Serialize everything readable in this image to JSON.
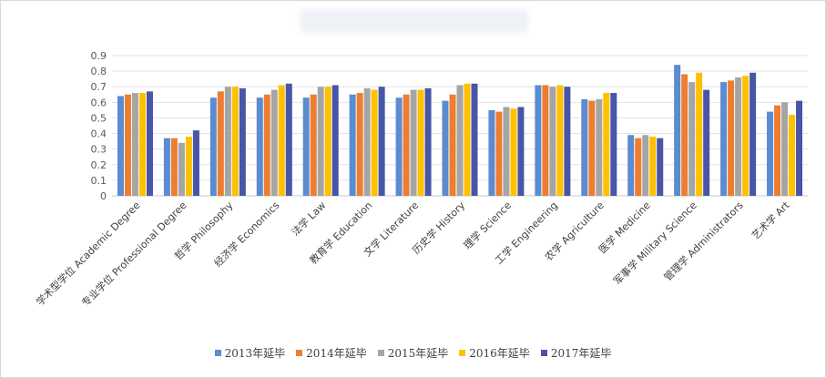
{
  "chart_data": {
    "type": "bar",
    "title": "",
    "xlabel": "",
    "ylabel": "",
    "ylim": [
      0,
      0.9
    ],
    "yticks": [
      0,
      0.1,
      0.2,
      0.3,
      0.4,
      0.5,
      0.6,
      0.7,
      0.8,
      0.9
    ],
    "ytick_labels": [
      "0",
      "0.1",
      "0.2",
      "0.3",
      "0.4",
      "0.5",
      "0.6",
      "0.7",
      "0.8",
      "0.9"
    ],
    "grid": true,
    "legend_position": "bottom",
    "categories": [
      "学术型学位 Academic Degree",
      "专业学位 Professional Degree",
      "哲学 Philosophy",
      "经济学 Economics",
      "法学 Law",
      "教育学 Education",
      "文学 Literature",
      "历史学 History",
      "理学 Science",
      "工学 Engineering",
      "农学 Agriculture",
      "医学 Medicine",
      "军事学 Military Science",
      "管理学 Administrators",
      "艺术学 Art"
    ],
    "series": [
      {
        "name": "2013年延毕",
        "color": "#5b8bd0",
        "values": [
          0.64,
          0.37,
          0.63,
          0.63,
          0.63,
          0.65,
          0.63,
          0.61,
          0.55,
          0.71,
          0.62,
          0.39,
          0.84,
          0.73,
          0.54
        ]
      },
      {
        "name": "2014年延毕",
        "color": "#ed7d31",
        "values": [
          0.65,
          0.37,
          0.67,
          0.65,
          0.65,
          0.66,
          0.65,
          0.65,
          0.54,
          0.71,
          0.61,
          0.37,
          0.78,
          0.74,
          0.58
        ]
      },
      {
        "name": "2015年延毕",
        "color": "#a5a5a5",
        "values": [
          0.66,
          0.34,
          0.7,
          0.68,
          0.7,
          0.69,
          0.68,
          0.71,
          0.57,
          0.7,
          0.62,
          0.39,
          0.73,
          0.76,
          0.6
        ]
      },
      {
        "name": "2016年延毕",
        "color": "#ffc000",
        "values": [
          0.66,
          0.38,
          0.7,
          0.71,
          0.7,
          0.68,
          0.68,
          0.72,
          0.56,
          0.71,
          0.66,
          0.38,
          0.79,
          0.77,
          0.52
        ]
      },
      {
        "name": "2017年延毕",
        "color": "#4756a8",
        "values": [
          0.67,
          0.42,
          0.69,
          0.72,
          0.71,
          0.7,
          0.69,
          0.72,
          0.57,
          0.7,
          0.66,
          0.37,
          0.68,
          0.79,
          0.61
        ]
      }
    ]
  }
}
